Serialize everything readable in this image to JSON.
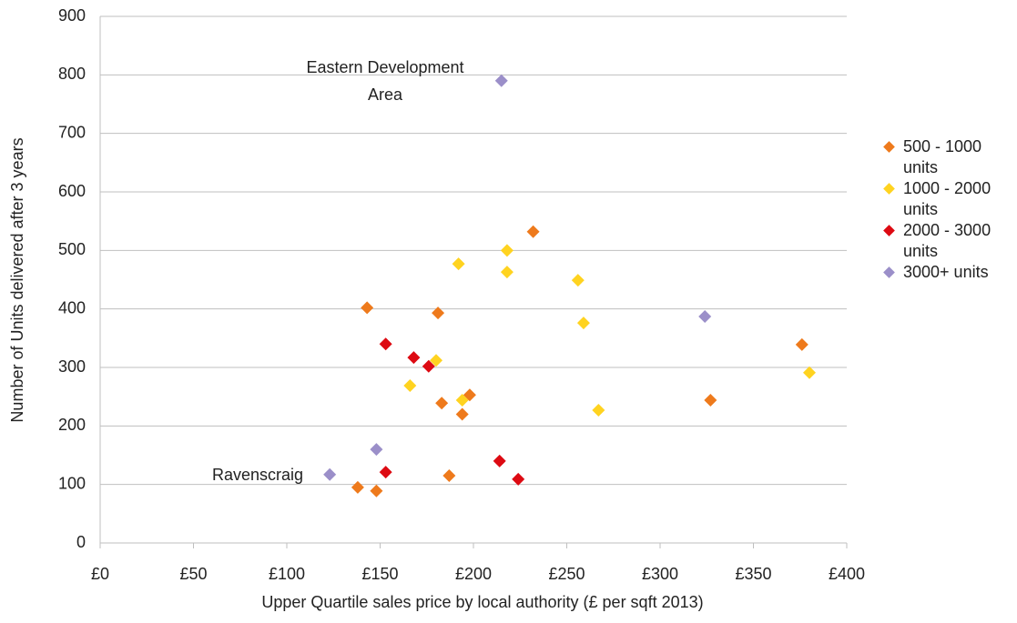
{
  "chart_data": {
    "type": "scatter",
    "xlabel": "Upper Quartile sales price by local authority (£ per sqft 2013)",
    "ylabel": "Number of Units delivered after 3 years",
    "xlim": [
      0,
      400
    ],
    "xticks": [
      {
        "value": 0,
        "label": "£0"
      },
      {
        "value": 50,
        "label": "£50"
      },
      {
        "value": 100,
        "label": "£100"
      },
      {
        "value": 150,
        "label": "£150"
      },
      {
        "value": 200,
        "label": "£200"
      },
      {
        "value": 250,
        "label": "£250"
      },
      {
        "value": 300,
        "label": "£300"
      },
      {
        "value": 350,
        "label": "£350"
      },
      {
        "value": 400,
        "label": "£400"
      }
    ],
    "ylim": [
      0,
      900
    ],
    "yticks": [
      0,
      100,
      200,
      300,
      400,
      500,
      600,
      700,
      800,
      900
    ],
    "grid": true,
    "legend": "right",
    "series": [
      {
        "name": "500 - 1000 units",
        "color": "#EE7A1C",
        "x": [
          143,
          181,
          232,
          183,
          198,
          194,
          187,
          138,
          148,
          327,
          376
        ],
        "values": [
          402,
          393,
          532,
          239,
          253,
          220,
          115,
          95,
          89,
          244,
          339
        ]
      },
      {
        "name": "1000 - 2000 units",
        "color": "#FFD320",
        "x": [
          192,
          218,
          218,
          256,
          259,
          180,
          166,
          194,
          267,
          380
        ],
        "values": [
          477,
          500,
          463,
          449,
          376,
          312,
          269,
          244,
          227,
          291
        ]
      },
      {
        "name": "2000 - 3000 units",
        "color": "#DD0A12",
        "x": [
          153,
          168,
          176,
          153,
          214,
          224
        ],
        "values": [
          340,
          317,
          302,
          121,
          140,
          109
        ]
      },
      {
        "name": "3000+ units",
        "color": "#9B8FC9",
        "x": [
          215,
          324,
          148,
          123
        ],
        "values": [
          790,
          387,
          160,
          117
        ]
      }
    ],
    "annotations": [
      [
        "Eastern Development",
        "Area"
      ],
      [
        "Ravenscraig"
      ]
    ]
  }
}
